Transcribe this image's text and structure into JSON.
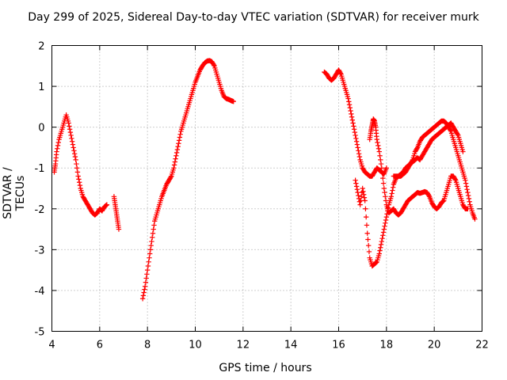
{
  "chart_data": {
    "type": "scatter",
    "title": "Day 299 of 2025, Sidereal Day-to-day VTEC variation (SDTVAR) for receiver murk",
    "xlabel": "GPS time / hours",
    "ylabel": "SDTVAR / TECUs",
    "xlim": [
      4,
      22
    ],
    "ylim": [
      -5,
      2
    ],
    "xticks": [
      4,
      6,
      8,
      10,
      12,
      14,
      16,
      18,
      20,
      22
    ],
    "yticks": [
      -5,
      -4,
      -3,
      -2,
      -1,
      0,
      1,
      2
    ],
    "grid": true,
    "marker": "plus",
    "color": "#ff0000",
    "series": [
      {
        "name": "segment-1",
        "x": [
          4.1,
          4.15,
          4.2,
          4.3,
          4.4,
          4.5,
          4.6,
          4.7,
          4.8,
          4.9,
          5.0,
          5.1,
          5.2,
          5.3,
          5.4,
          5.5,
          5.6,
          5.7,
          5.8,
          5.9,
          6.0,
          6.1,
          6.2,
          6.3
        ],
        "y": [
          -1.1,
          -0.9,
          -0.6,
          -0.3,
          -0.1,
          0.1,
          0.3,
          0.1,
          -0.2,
          -0.5,
          -0.8,
          -1.2,
          -1.5,
          -1.7,
          -1.8,
          -1.9,
          -2.0,
          -2.1,
          -2.15,
          -2.1,
          -2.0,
          -2.05,
          -1.95,
          -1.9
        ]
      },
      {
        "name": "segment-2",
        "x": [
          6.6,
          6.65,
          6.7,
          6.75,
          6.8
        ],
        "y": [
          -1.7,
          -1.9,
          -2.1,
          -2.3,
          -2.5
        ]
      },
      {
        "name": "segment-3",
        "x": [
          7.8,
          7.9,
          8.0,
          8.1,
          8.2,
          8.3,
          8.4,
          8.5,
          8.6,
          8.7,
          8.8,
          8.9,
          9.0,
          9.1,
          9.2,
          9.3,
          9.4,
          9.5,
          9.6,
          9.7,
          9.8,
          9.9,
          10.0,
          10.1,
          10.2,
          10.3,
          10.4,
          10.5,
          10.6,
          10.7,
          10.8,
          10.9,
          11.0,
          11.1,
          11.2,
          11.3,
          11.4,
          11.5,
          11.6
        ],
        "y": [
          -4.2,
          -3.9,
          -3.5,
          -3.1,
          -2.7,
          -2.3,
          -2.1,
          -1.9,
          -1.7,
          -1.55,
          -1.4,
          -1.3,
          -1.2,
          -1.0,
          -0.7,
          -0.4,
          -0.1,
          0.1,
          0.3,
          0.5,
          0.7,
          0.9,
          1.1,
          1.25,
          1.4,
          1.5,
          1.58,
          1.62,
          1.63,
          1.6,
          1.5,
          1.3,
          1.1,
          0.9,
          0.75,
          0.7,
          0.68,
          0.65,
          0.63
        ]
      },
      {
        "name": "segment-4",
        "x": [
          15.4,
          15.5,
          15.6,
          15.7,
          15.8,
          15.9,
          16.0,
          16.1,
          16.2,
          16.3,
          16.4,
          16.5,
          16.6,
          16.7,
          16.8,
          16.9,
          17.0,
          17.1,
          17.2,
          17.3,
          17.4,
          17.5,
          17.6,
          17.7,
          17.8,
          17.9,
          18.0
        ],
        "y": [
          1.35,
          1.3,
          1.2,
          1.15,
          1.2,
          1.3,
          1.4,
          1.3,
          1.1,
          0.9,
          0.7,
          0.4,
          0.1,
          -0.2,
          -0.5,
          -0.8,
          -1.0,
          -1.1,
          -1.15,
          -1.2,
          -1.2,
          -1.1,
          -1.0,
          -1.05,
          -1.1,
          -1.15,
          -1.0
        ]
      },
      {
        "name": "segment-5",
        "x": [
          16.7,
          16.8,
          16.9,
          17.0,
          17.1,
          17.2,
          17.3,
          17.4,
          17.5,
          17.6,
          17.7,
          17.8,
          17.9,
          18.0,
          18.1,
          18.2,
          18.3,
          18.4,
          18.5,
          18.6,
          18.7,
          18.8,
          18.9,
          19.0,
          19.1,
          19.2,
          19.3,
          19.4,
          19.5,
          19.6,
          19.7,
          19.8,
          19.9,
          20.0,
          20.1,
          20.2,
          20.3,
          20.4,
          20.5,
          20.6,
          20.7,
          20.8,
          20.9,
          21.0,
          21.1,
          21.2,
          21.3,
          21.4,
          21.5,
          21.6,
          21.7
        ],
        "y": [
          -1.3,
          -1.6,
          -1.9,
          -1.5,
          -1.8,
          -2.6,
          -3.2,
          -3.4,
          -3.35,
          -3.3,
          -3.1,
          -2.8,
          -2.5,
          -2.2,
          -1.9,
          -1.7,
          -1.4,
          -1.25,
          -1.2,
          -1.2,
          -1.15,
          -1.1,
          -1.0,
          -0.9,
          -0.8,
          -0.6,
          -0.5,
          -0.35,
          -0.25,
          -0.2,
          -0.15,
          -0.1,
          -0.05,
          0.0,
          0.05,
          0.1,
          0.15,
          0.15,
          0.1,
          0.0,
          -0.1,
          -0.3,
          -0.5,
          -0.7,
          -0.9,
          -1.1,
          -1.3,
          -1.6,
          -1.9,
          -2.1,
          -2.25
        ]
      },
      {
        "name": "segment-6",
        "x": [
          17.3,
          17.35,
          17.4,
          17.45,
          17.5,
          17.55,
          17.6,
          17.7,
          17.8,
          17.9,
          18.0,
          18.1,
          18.2,
          18.3,
          18.4,
          18.5,
          18.6,
          18.7,
          18.8,
          18.9,
          19.0,
          19.1,
          19.2,
          19.3,
          19.4,
          19.5,
          19.6,
          19.7,
          19.8,
          19.9,
          20.0,
          20.1,
          20.2,
          20.3,
          20.4,
          20.5,
          20.6,
          20.7,
          20.8,
          20.9,
          21.0,
          21.1,
          21.2,
          21.3,
          21.4
        ],
        "y": [
          -0.3,
          -0.1,
          0.05,
          0.2,
          0.15,
          0.0,
          -0.3,
          -0.6,
          -1.0,
          -1.5,
          -1.9,
          -2.1,
          -2.05,
          -2.0,
          -2.1,
          -2.15,
          -2.1,
          -2.0,
          -1.9,
          -1.8,
          -1.75,
          -1.7,
          -1.65,
          -1.6,
          -1.62,
          -1.6,
          -1.58,
          -1.6,
          -1.7,
          -1.85,
          -1.95,
          -2.0,
          -1.95,
          -1.85,
          -1.8,
          -1.6,
          -1.4,
          -1.2,
          -1.2,
          -1.3,
          -1.5,
          -1.7,
          -1.9,
          -2.0,
          -2.0
        ]
      },
      {
        "name": "segment-7",
        "x": [
          18.3,
          18.4,
          18.5,
          18.6,
          18.7,
          18.8,
          18.9,
          19.0,
          19.1,
          19.2,
          19.3,
          19.4,
          19.5,
          19.6,
          19.7,
          19.8,
          19.9,
          20.0,
          20.1,
          20.2,
          20.3,
          20.4,
          20.5,
          20.6,
          20.7,
          20.8,
          20.9,
          21.0,
          21.1,
          21.2
        ],
        "y": [
          -1.2,
          -1.2,
          -1.2,
          -1.15,
          -1.1,
          -1.0,
          -0.95,
          -0.9,
          -0.85,
          -0.8,
          -0.75,
          -0.8,
          -0.7,
          -0.6,
          -0.5,
          -0.4,
          -0.3,
          -0.25,
          -0.2,
          -0.15,
          -0.1,
          -0.05,
          0.0,
          0.05,
          0.1,
          0.0,
          -0.1,
          -0.2,
          -0.4,
          -0.6
        ]
      }
    ]
  }
}
